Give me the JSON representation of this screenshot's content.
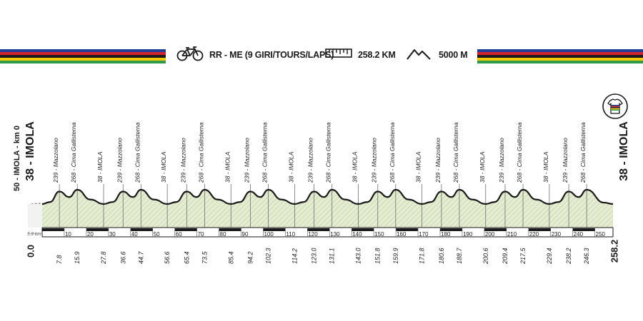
{
  "header": {
    "race": "RR - ME (9 GIRI/TOURS/LAPS)",
    "distance": "258.2 KM",
    "elevation": "5000 M",
    "icons": [
      "bicycle-icon",
      "ruler-icon",
      "mountain-icon",
      "jersey-icon"
    ],
    "stripe_colors": [
      "#1d3f95",
      "#d4232c",
      "#1a1a1a",
      "#f6c800",
      "#2e9a4a"
    ]
  },
  "left_label": {
    "start": "38 - IMOLA",
    "sub": "50 - IMOLA - km 0"
  },
  "right_label": "38 - IMOLA",
  "start_km": "0.0",
  "end_km": "258.2",
  "neutral_label": "5.9 km",
  "colors": {
    "fill": "#e4ecd1",
    "line": "#1a1a1a",
    "hatch": "#b9c79a",
    "axis": "#1a1a1a"
  },
  "scale_ticks": [
    "10",
    "20",
    "30",
    "40",
    "50",
    "60",
    "70",
    "80",
    "90",
    "100",
    "110",
    "120",
    "130",
    "140",
    "150",
    "160",
    "170",
    "180",
    "190",
    "200",
    "210",
    "220",
    "230",
    "240",
    "250"
  ],
  "points": [
    {
      "km": 7.8,
      "label": "239 - Mazzolano",
      "alt": 239
    },
    {
      "km": 15.9,
      "label": "268 - Cima Gallisterna",
      "alt": 268
    },
    {
      "km": 27.8,
      "label": "38 - IMOLA",
      "alt": 38
    },
    {
      "km": 36.6,
      "label": "239 - Mazzolano",
      "alt": 239
    },
    {
      "km": 44.7,
      "label": "268 - Cima Gallisterna",
      "alt": 268
    },
    {
      "km": 56.6,
      "label": "38 - IMOLA",
      "alt": 38
    },
    {
      "km": 65.4,
      "label": "239 - Mazzolano",
      "alt": 239
    },
    {
      "km": 73.5,
      "label": "268 - Cima Gallisterna",
      "alt": 268
    },
    {
      "km": 85.4,
      "label": "38 - IMOLA",
      "alt": 38
    },
    {
      "km": 94.2,
      "label": "239 - Mazzolano",
      "alt": 239
    },
    {
      "km": 102.3,
      "label": "268 - Cima Gallisterna",
      "alt": 268
    },
    {
      "km": 114.2,
      "label": "38 - IMOLA",
      "alt": 38
    },
    {
      "km": 123.0,
      "label": "239 - Mazzolano",
      "alt": 239
    },
    {
      "km": 131.1,
      "label": "268 - Cima Gallisterna",
      "alt": 268
    },
    {
      "km": 143.0,
      "label": "38 - IMOLA",
      "alt": 38
    },
    {
      "km": 151.8,
      "label": "239 - Mazzolano",
      "alt": 239
    },
    {
      "km": 159.9,
      "label": "268 - Cima Gallisterna",
      "alt": 268
    },
    {
      "km": 171.8,
      "label": "38 - IMOLA",
      "alt": 38
    },
    {
      "km": 180.6,
      "label": "239 - Mazzolano",
      "alt": 239
    },
    {
      "km": 188.7,
      "label": "268 - Cima Gallisterna",
      "alt": 268
    },
    {
      "km": 200.6,
      "label": "38 - IMOLA",
      "alt": 38
    },
    {
      "km": 209.4,
      "label": "239 - Mazzolano",
      "alt": 239
    },
    {
      "km": 217.5,
      "label": "268 - Cima Gallisterna",
      "alt": 268
    },
    {
      "km": 229.4,
      "label": "38 - IMOLA",
      "alt": 38
    },
    {
      "km": 238.2,
      "label": "239 - Mazzolano",
      "alt": 239
    },
    {
      "km": 246.3,
      "label": "268 - Cima Gallisterna",
      "alt": 268
    }
  ],
  "point_km_labels": [
    "7.8",
    "15.9",
    "27.8",
    "36.6",
    "44.7",
    "56.6",
    "65.4",
    "73.5",
    "85.4",
    "94.2",
    "102.3",
    "114.2",
    "123.0",
    "131.1",
    "143.0",
    "151.8",
    "159.9",
    "171.8",
    "180.6",
    "188.7",
    "200.6",
    "209.4",
    "217.5",
    "229.4",
    "238.2",
    "246.3"
  ]
}
